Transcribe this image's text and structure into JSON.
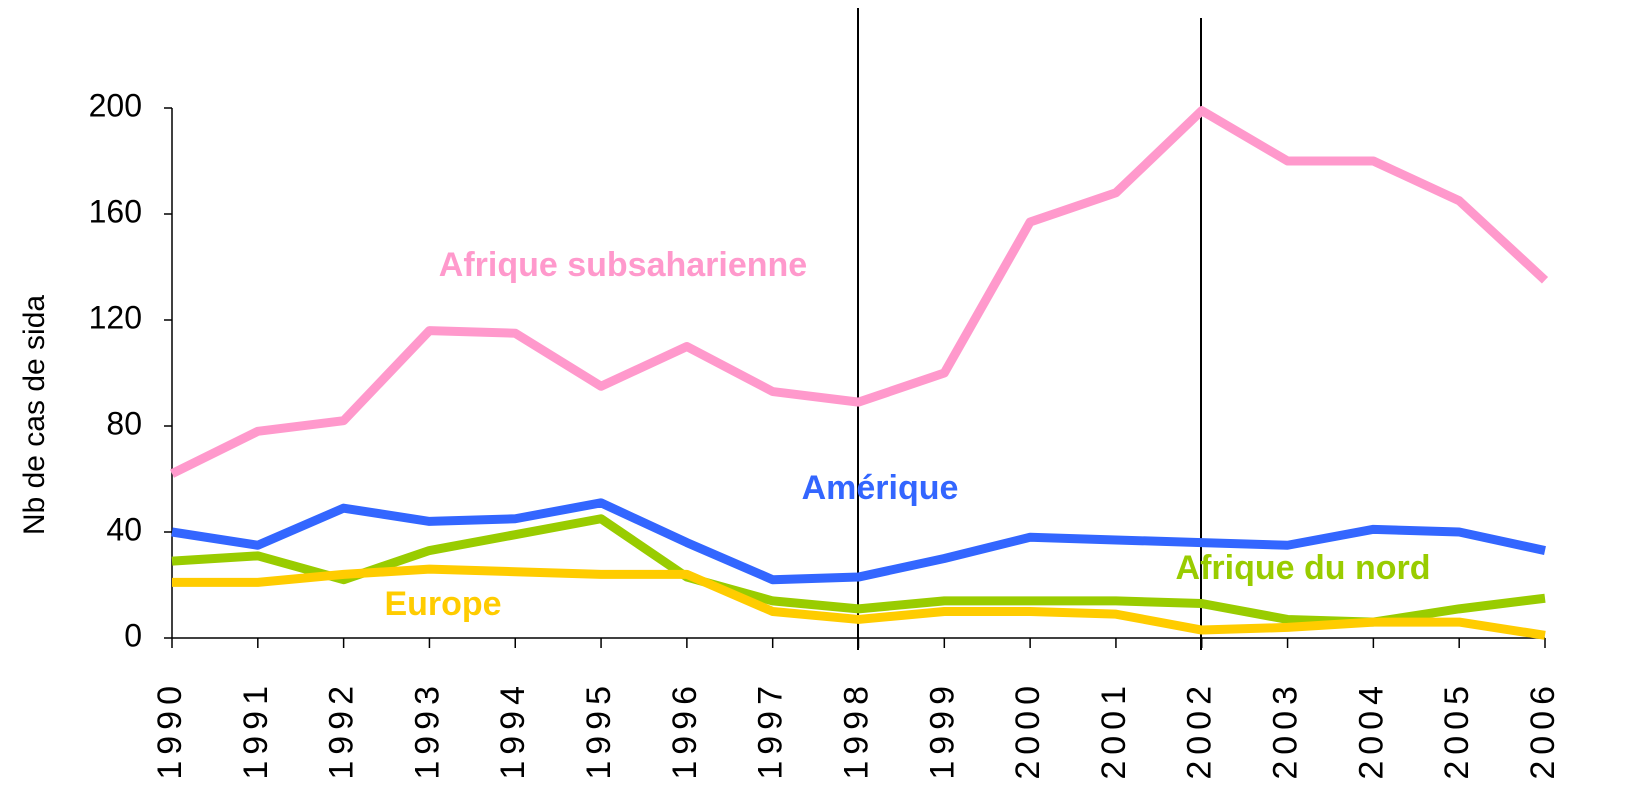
{
  "chart_data": {
    "type": "line",
    "y_label": "Nb de cas de sida",
    "categories": [
      "1990",
      "1991",
      "1992",
      "1993",
      "1994",
      "1995",
      "1996",
      "1997",
      "1998",
      "1999",
      "2000",
      "2001",
      "2002",
      "2003",
      "2004",
      "2005",
      "2006"
    ],
    "ylim": [
      0,
      200
    ],
    "yticks": [
      0,
      40,
      80,
      120,
      160,
      200
    ],
    "series": [
      {
        "name": "Afrique subsaharienne",
        "color": "#ff99cc",
        "values": [
          62,
          78,
          82,
          116,
          115,
          95,
          110,
          93,
          89,
          100,
          157,
          168,
          199,
          180,
          180,
          165,
          135
        ]
      },
      {
        "name": "Amérique",
        "color": "#3366ff",
        "values": [
          40,
          35,
          49,
          44,
          45,
          51,
          36,
          22,
          23,
          30,
          38,
          37,
          36,
          35,
          41,
          40,
          33
        ]
      },
      {
        "name": "Afrique du nord",
        "color": "#99cc00",
        "values": [
          29,
          31,
          22,
          33,
          39,
          45,
          23,
          14,
          11,
          14,
          14,
          14,
          13,
          7,
          6,
          11,
          15
        ]
      },
      {
        "name": "Europe",
        "color": "#ffcc00",
        "values": [
          21,
          21,
          24,
          26,
          25,
          24,
          24,
          10,
          7,
          10,
          10,
          9,
          3,
          4,
          6,
          6,
          1
        ]
      }
    ]
  }
}
